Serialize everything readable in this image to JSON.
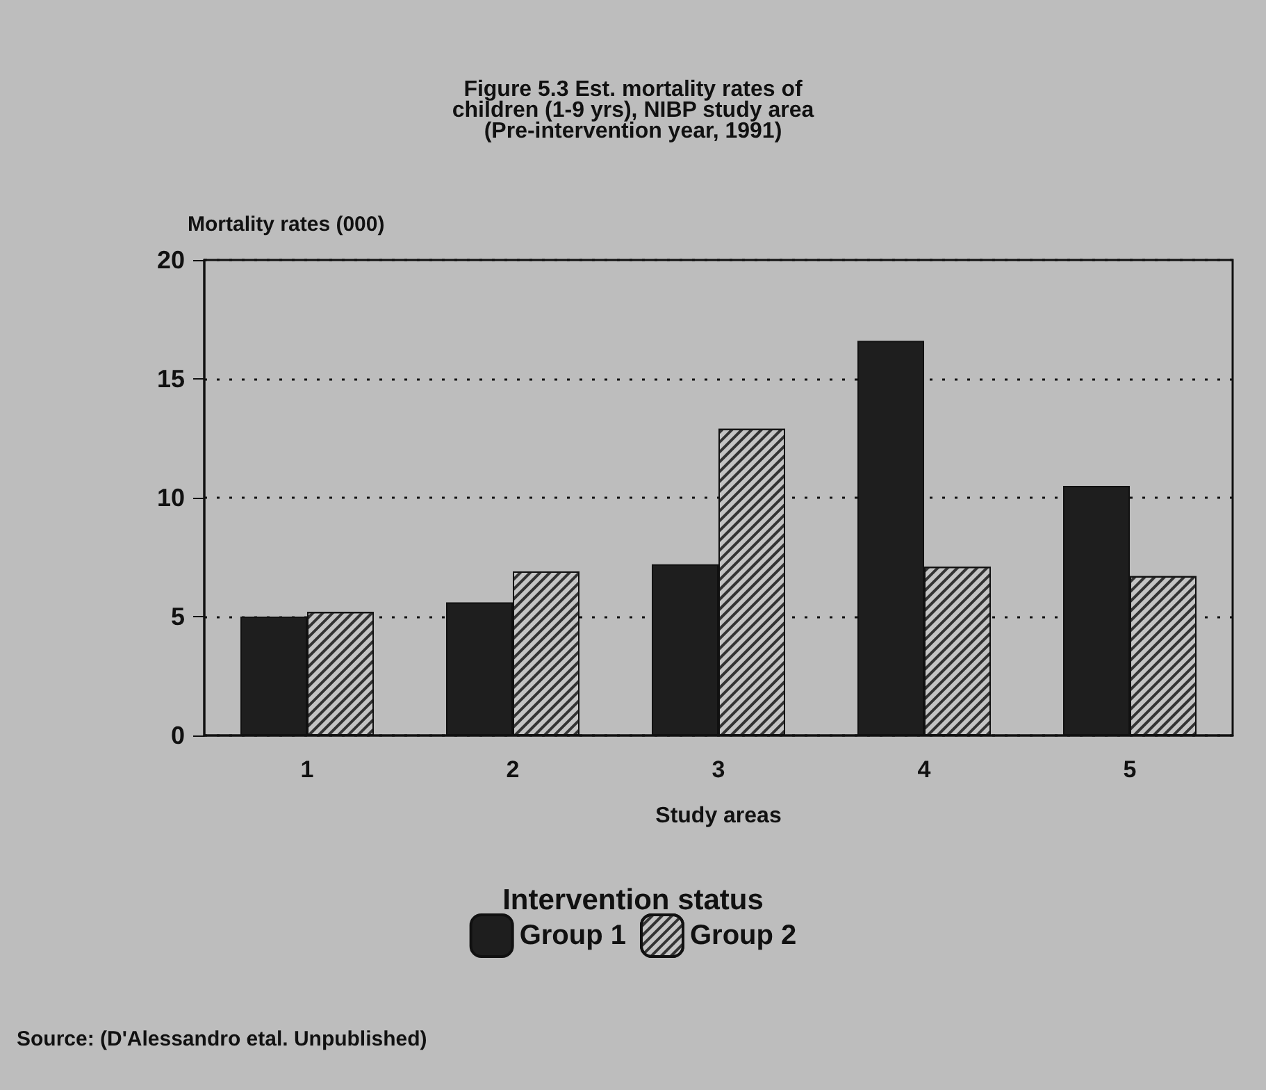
{
  "chart_data": {
    "type": "bar",
    "title": "Figure 5.3 Est. mortality rates of\nchildren (1-9 yrs), NIBP study area\n(Pre-intervention year, 1991)",
    "ylabel": "Mortality rates (000)",
    "xlabel": "Study areas",
    "legend_title": "Intervention status",
    "annotations": [
      "Source: (D'Alessandro etal. Unpublished)"
    ],
    "categories": [
      "1",
      "2",
      "3",
      "4",
      "5"
    ],
    "series": [
      {
        "name": "Group 1",
        "color": "#1e1e1e",
        "values": [
          5.0,
          5.6,
          7.2,
          16.6,
          10.5
        ]
      },
      {
        "name": "Group 2",
        "color": "#c4c4c4",
        "values": [
          5.2,
          6.9,
          12.9,
          7.1,
          6.7
        ]
      }
    ],
    "ylim": [
      0,
      20
    ],
    "yticks": [
      0,
      5,
      10,
      15,
      20
    ],
    "grid": "y",
    "legend": "bottom"
  }
}
